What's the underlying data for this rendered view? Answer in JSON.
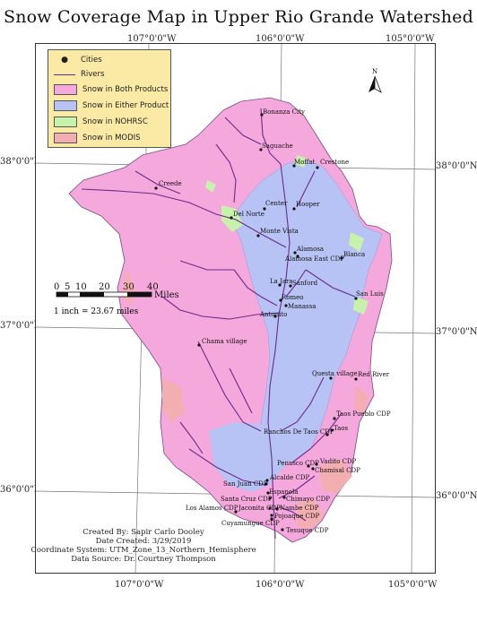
{
  "title": "Snow Coverage Map in Upper Rio Grande Watershed",
  "graticule": {
    "lon_labels": [
      "107°0'0\"W",
      "106°0'0\"W",
      "105°0'0\"W"
    ],
    "lat_labels": [
      "38°0'0\"N",
      "37°0'0\"N",
      "36°0'0\"N"
    ]
  },
  "legend": {
    "items": [
      {
        "label": "Cities",
        "kind": "point",
        "color": "#000000"
      },
      {
        "label": "Rivers",
        "kind": "line",
        "color": "#6b2a8b"
      },
      {
        "label": "Snow in Both Products",
        "kind": "fill",
        "color": "#f5a8dc"
      },
      {
        "label": "Snow in Either Product",
        "kind": "fill",
        "color": "#b7c3f4"
      },
      {
        "label": "Snow in NOHRSC",
        "kind": "fill",
        "color": "#c8f2ac"
      },
      {
        "label": "Snow in MODIS",
        "kind": "fill",
        "color": "#f3aeb2"
      }
    ]
  },
  "north_arrow": "N",
  "scale_bar": {
    "ticks": [
      "0",
      "5",
      "10",
      "20",
      "30",
      "40"
    ],
    "unit": "Miles",
    "ratio": "1 inch = 23.67 miles"
  },
  "cities": [
    "Bonanza City",
    "Saguache",
    "Moffat",
    "Crestone",
    "Creede",
    "Center",
    "Hooper",
    "Del Norte",
    "Monte Vista",
    "Alamosa",
    "Alamosa East CDP",
    "Blanca",
    "La Jara",
    "Sanford",
    "San Luis",
    "Romeo",
    "Manassa",
    "Antonito",
    "Chama village",
    "Questa village",
    "Red River",
    "Taos Pueblo CDP",
    "Taos",
    "Ranchos De Taos CDP",
    "Penasco CDP",
    "Vadito CDP",
    "Chamisal CDP",
    "San Juan CDP",
    "Alcalde CDP",
    "Espanola",
    "Santa Cruz CDP",
    "Chimayo CDP",
    "Los Alamos CDP",
    "Jaconita CDP",
    "Nambe CDP",
    "Pojoaque CDP",
    "Cuyamungue CDP",
    "Tesuque CDP"
  ],
  "credits": {
    "created_by": "Created By: Sapir Carlo Dooley",
    "date_created": "Date Created: 3/29/2019",
    "coordinate_system": "Coordinate System: UTM_Zone_13_Northern_Hemisphere",
    "data_source": "Data Source: Dr. Courtney Thompson"
  }
}
